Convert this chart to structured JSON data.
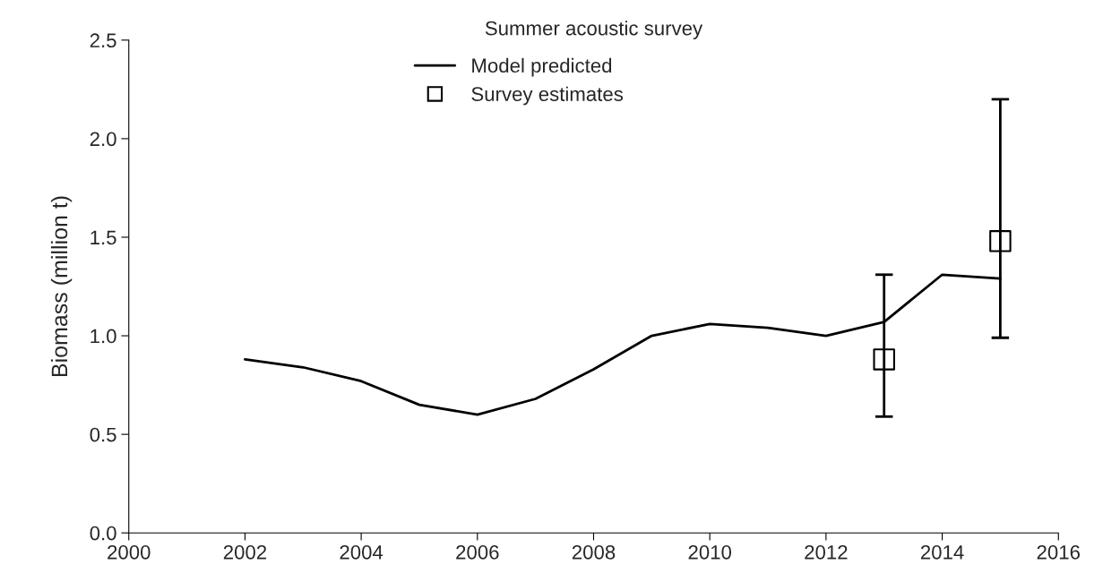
{
  "chart_data": {
    "type": "line",
    "title": "Summer acoustic survey",
    "ylabel": "Biomass (million t)",
    "xlim": [
      2000,
      2016
    ],
    "xticks": [
      2000,
      2002,
      2004,
      2006,
      2008,
      2010,
      2012,
      2014,
      2016
    ],
    "ylim": [
      0,
      2.5
    ],
    "yticks": [
      {
        "value": 0,
        "label": "0.0"
      },
      0.5,
      {
        "value": 1,
        "label": "1.0"
      },
      1.5,
      {
        "value": 2,
        "label": "2.0"
      },
      2.5
    ],
    "grid": false,
    "legend": "top",
    "series": [
      {
        "name": "Model predicted",
        "color": "#000000",
        "marker": "none",
        "line_style": "solid",
        "x": [
          2002,
          2003,
          2004,
          2005,
          2006,
          2007,
          2008,
          2009,
          2010,
          2011,
          2012,
          2013,
          2014,
          2015
        ],
        "values": [
          0.88,
          0.84,
          0.77,
          0.65,
          0.6,
          0.68,
          0.83,
          1.0,
          1.06,
          1.04,
          1.0,
          1.07,
          1.31,
          1.29
        ]
      },
      {
        "name": "Survey estimates",
        "type": "scatter",
        "color": "#000000",
        "marker": "square",
        "x": [
          2013,
          2015
        ],
        "values": [
          0.88,
          1.48
        ],
        "errors": [
          [
            0.59,
            1.31
          ],
          [
            0.99,
            2.2
          ]
        ]
      }
    ]
  }
}
